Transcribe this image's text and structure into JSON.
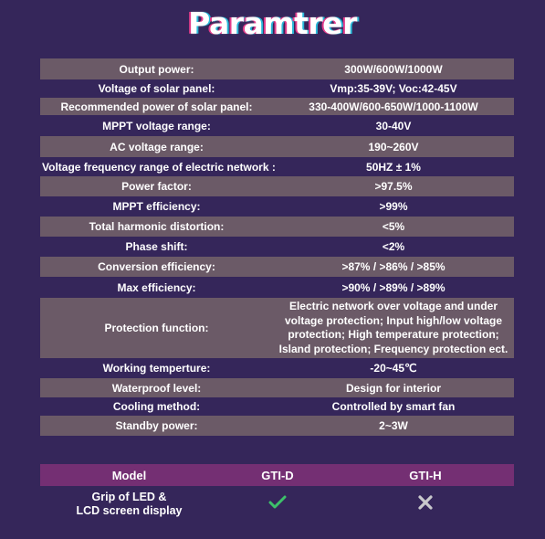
{
  "title": "Paramtrer",
  "params": [
    {
      "label": "Output power:",
      "value": "300W/600W/1000W"
    },
    {
      "label": "Voltage of solar panel:",
      "value": "Vmp:35-39V; Voc:42-45V"
    },
    {
      "label": "Recommended power of solar panel:",
      "value": "330-400W/600-650W/1000-1100W"
    },
    {
      "label": "MPPT voltage range:",
      "value": "30-40V"
    },
    {
      "label": "AC voltage range:",
      "value": "190~260V"
    },
    {
      "label": "Voltage frequency range of electric network :",
      "value": "50HZ ± 1%"
    },
    {
      "label": "Power factor:",
      "value": ">97.5%"
    },
    {
      "label": "MPPT efficiency:",
      "value": ">99%"
    },
    {
      "label": "Total harmonic distortion:",
      "value": "<5%"
    },
    {
      "label": "Phase shift:",
      "value": "<2%"
    },
    {
      "label": "Conversion efficiency:",
      "value": ">87% / >86% / >85%"
    },
    {
      "label": "Max efficiency:",
      "value": ">90% / >89% / >89%"
    },
    {
      "label": "Protection function:",
      "value_lines": [
        "Electric network over voltage and under",
        "voltage protection; Input high/low voltage",
        "protection; High temperature protection;",
        "Island protection; Frequency protection ect."
      ]
    },
    {
      "label": "Working temperture:",
      "value": "-20~45℃"
    },
    {
      "label": "Waterproof level:",
      "value": "Design for interior"
    },
    {
      "label": "Cooling method:",
      "value": "Controlled by smart fan"
    },
    {
      "label": "Standby power:",
      "value": "2~3W"
    }
  ],
  "model_table": {
    "headers": [
      "Model",
      "GTI-D",
      "GTI-H"
    ],
    "row": {
      "label_lines": [
        "Grip of LED &",
        "LCD screen display"
      ],
      "gti_d": {
        "icon": "check-icon",
        "color": "#3dc06a"
      },
      "gti_h": {
        "icon": "cross-icon",
        "color": "#c8c8cc"
      }
    }
  }
}
